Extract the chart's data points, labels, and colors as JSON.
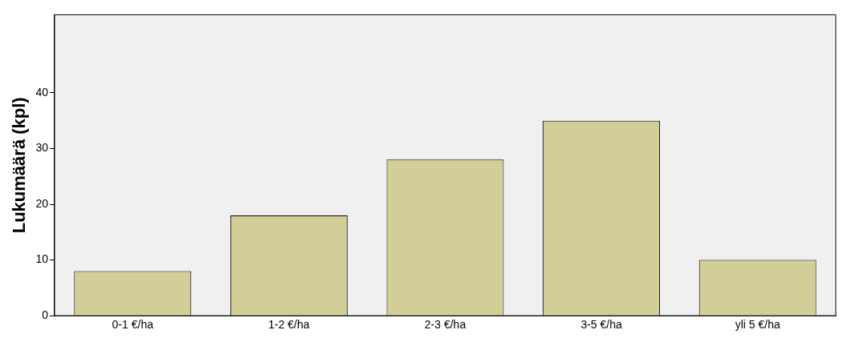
{
  "chart_data": {
    "type": "bar",
    "ylabel": "Lukumäärä (kpl)",
    "categories": [
      "0-1 €/ha",
      "1-2 €/ha",
      "2-3 €/ha",
      "3-5 €/ha",
      "yli 5 €/ha"
    ],
    "values": [
      8,
      18,
      28,
      35,
      10
    ],
    "color": "#d3ce97",
    "ylim": [
      0,
      54
    ],
    "yticks": [
      0,
      10,
      20,
      30,
      40
    ],
    "grid": false,
    "legend": false
  }
}
